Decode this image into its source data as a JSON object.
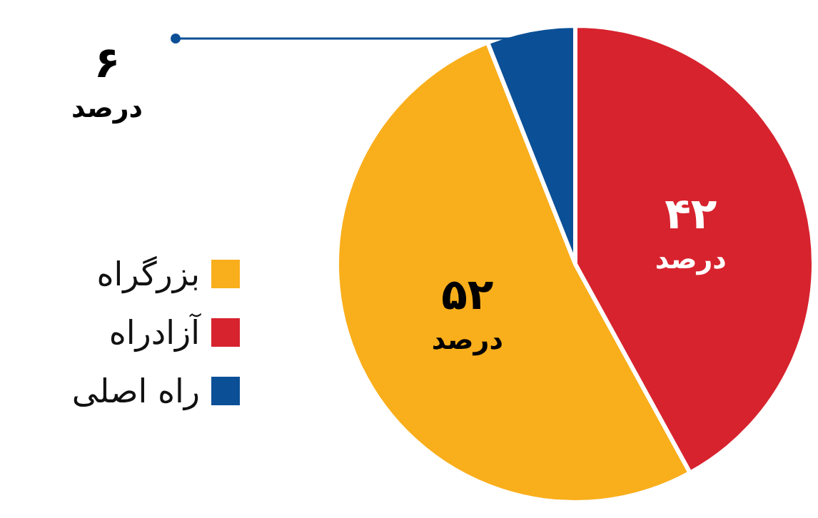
{
  "chart_data": {
    "type": "pie",
    "categories": [
      "بزرگراه",
      "آزادراه",
      "راه اصلی"
    ],
    "values": [
      52,
      42,
      6
    ],
    "colors": [
      "#f9ae1b",
      "#d7232e",
      "#0b4f96"
    ],
    "value_labels": [
      "۵۲ درصد",
      "۴۲ درصد",
      "۶ درصد"
    ],
    "legend": "left"
  }
}
